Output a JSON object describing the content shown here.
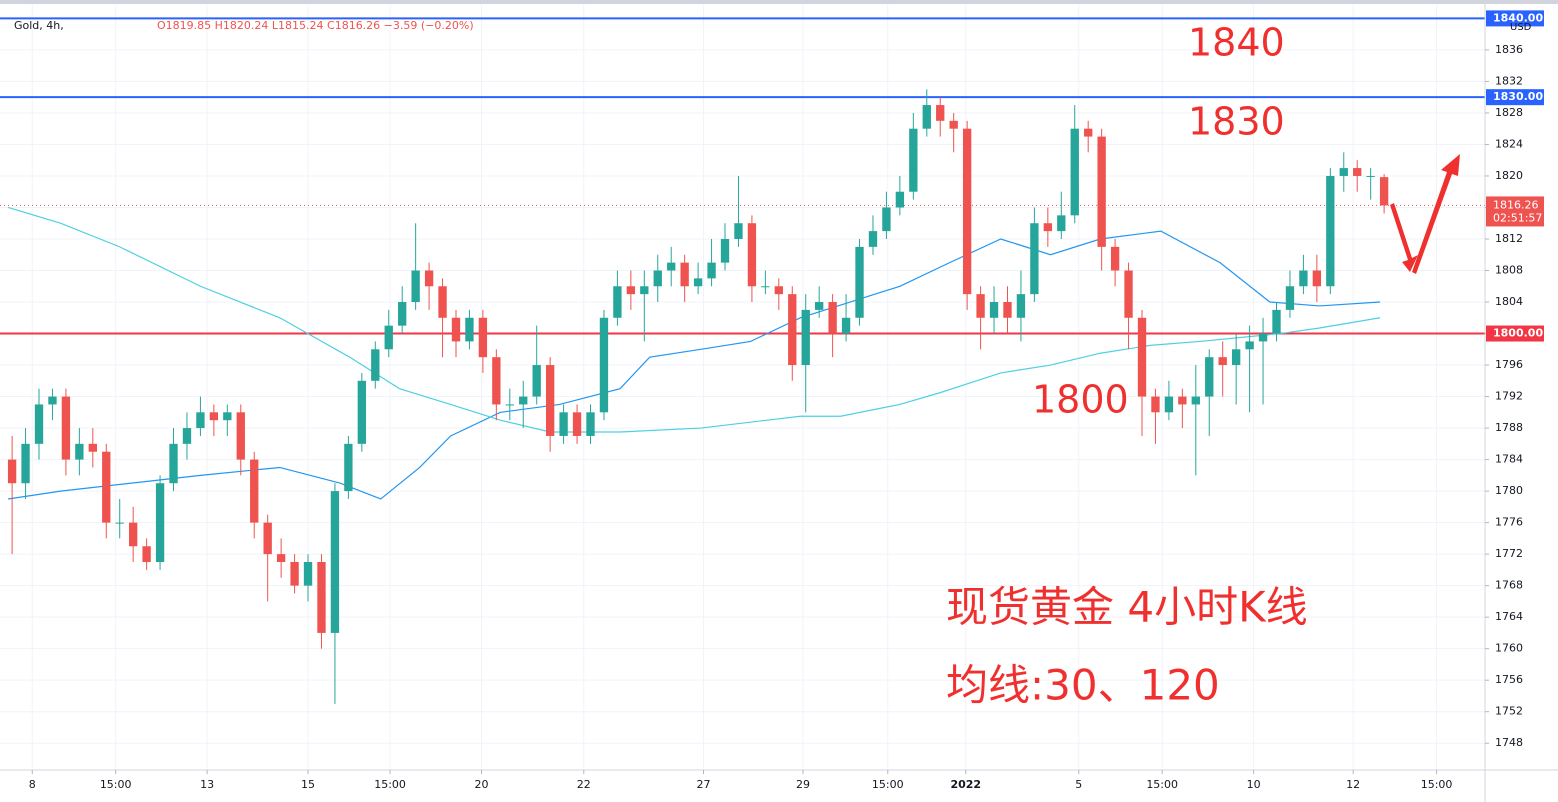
{
  "chart_data": {
    "type": "candlestick",
    "title": "Gold, 4h,",
    "ohlc_text": "O1819.85 H1820.24 L1815.24 C1816.26 −3.59 (−0.20%)",
    "currency": "USD",
    "up_color": "#26a69a",
    "down_color": "#ef5350",
    "grid": true,
    "ylim": [
      1744.6,
      1841.7
    ],
    "yticks": [
      1748,
      1752,
      1756,
      1760,
      1764,
      1768,
      1772,
      1776,
      1780,
      1784,
      1788,
      1792,
      1796,
      1800,
      1804,
      1808,
      1812,
      1816,
      1820,
      1824,
      1828,
      1832,
      1836
    ],
    "xlim": [
      -0.9,
      109.5
    ],
    "xticks": [
      {
        "value": 1.5,
        "label": "8"
      },
      {
        "value": 7.7,
        "label": "15:00"
      },
      {
        "value": 14.5,
        "label": "13"
      },
      {
        "value": 22.0,
        "label": "15"
      },
      {
        "value": 28.1,
        "label": "15:00"
      },
      {
        "value": 34.9,
        "label": "20"
      },
      {
        "value": 42.5,
        "label": "22"
      },
      {
        "value": 51.4,
        "label": "27"
      },
      {
        "value": 58.8,
        "label": "29"
      },
      {
        "value": 65.1,
        "label": "15:00"
      },
      {
        "value": 70.9,
        "label": "2022"
      },
      {
        "value": 79.3,
        "label": "5"
      },
      {
        "value": 85.5,
        "label": "15:00"
      },
      {
        "value": 92.3,
        "label": "10"
      },
      {
        "value": 99.7,
        "label": "12"
      },
      {
        "value": 105.9,
        "label": "15:00"
      }
    ],
    "open": [
      1784,
      1781,
      1786,
      1791,
      1792,
      1784,
      1786,
      1785,
      1776,
      1776,
      1773,
      1771,
      1781,
      1786,
      1788,
      1790,
      1789,
      1790,
      1784,
      1776,
      1772,
      1771,
      1768,
      1771,
      1762,
      1780,
      1786,
      1794,
      1798,
      1801,
      1804,
      1808,
      1806,
      1802,
      1799,
      1802,
      1797,
      1791,
      1791,
      1792,
      1796,
      1787,
      1790,
      1787,
      1790,
      1802,
      1806,
      1805,
      1806,
      1808,
      1809,
      1806,
      1807,
      1809,
      1812,
      1814,
      1806,
      1806,
      1805,
      1796,
      1803,
      1804,
      1800,
      1802,
      1811,
      1813,
      1816,
      1818,
      1826,
      1829,
      1827,
      1826,
      1805,
      1802,
      1804,
      1802,
      1805,
      1814,
      1813,
      1815,
      1826,
      1825,
      1811,
      1808,
      1802,
      1792,
      1790,
      1792,
      1791,
      1792,
      1797,
      1796,
      1798,
      1799,
      1800,
      1803,
      1806,
      1808,
      1806,
      1820,
      1821,
      1820,
      1819.85
    ],
    "high": [
      1787,
      1788,
      1793,
      1793,
      1793,
      1788,
      1788,
      1786,
      1779,
      1778,
      1774,
      1782,
      1788,
      1790,
      1792,
      1791,
      1791,
      1791,
      1785,
      1777,
      1774,
      1772,
      1772,
      1772,
      1781,
      1787,
      1795,
      1799,
      1803,
      1806,
      1814,
      1809,
      1807,
      1803,
      1803,
      1803,
      1798,
      1793,
      1794,
      1801,
      1797,
      1791,
      1791,
      1791,
      1803,
      1808,
      1808,
      1808,
      1810,
      1811,
      1810,
      1809,
      1812,
      1814,
      1820,
      1815,
      1808,
      1807,
      1806,
      1805,
      1806,
      1805,
      1805,
      1812,
      1815,
      1818,
      1820,
      1828,
      1831,
      1830,
      1828,
      1827,
      1806,
      1806,
      1806,
      1808,
      1816,
      1816,
      1818,
      1829,
      1827,
      1826,
      1812,
      1809,
      1803,
      1793,
      1794,
      1793,
      1796,
      1798,
      1799,
      1800,
      1801,
      1802,
      1804,
      1808,
      1810,
      1810,
      1821,
      1823,
      1822,
      1821,
      1820.24
    ],
    "low": [
      1772,
      1779,
      1784,
      1789,
      1782,
      1782,
      1783,
      1774,
      1774,
      1771,
      1770,
      1770,
      1780,
      1784,
      1787,
      1787,
      1787,
      1782,
      1774,
      1766,
      1769,
      1767,
      1766,
      1760,
      1753,
      1779,
      1785,
      1793,
      1797,
      1800,
      1803,
      1803,
      1797,
      1797,
      1798,
      1795,
      1789,
      1789,
      1788,
      1791,
      1785,
      1786,
      1786,
      1786,
      1789,
      1801,
      1803,
      1799,
      1804,
      1806,
      1804,
      1805,
      1806,
      1808,
      1811,
      1804,
      1805,
      1803,
      1794,
      1790,
      1802,
      1797,
      1799,
      1801,
      1810,
      1812,
      1815,
      1817,
      1825,
      1825,
      1823,
      1803,
      1798,
      1800,
      1800,
      1799,
      1804,
      1811,
      1812,
      1814,
      1823,
      1808,
      1806,
      1798,
      1787,
      1786,
      1789,
      1788,
      1782,
      1787,
      1792,
      1791,
      1790,
      1791,
      1799,
      1802,
      1805,
      1804,
      1805,
      1818,
      1818,
      1817,
      1815.24
    ],
    "close": [
      1781,
      1786,
      1791,
      1792,
      1784,
      1786,
      1785,
      1776,
      1776,
      1773,
      1771,
      1781,
      1786,
      1788,
      1790,
      1789,
      1790,
      1784,
      1776,
      1772,
      1771,
      1768,
      1771,
      1762,
      1780,
      1786,
      1794,
      1798,
      1801,
      1804,
      1808,
      1806,
      1802,
      1799,
      1802,
      1797,
      1791,
      1791,
      1792,
      1796,
      1787,
      1790,
      1787,
      1790,
      1802,
      1806,
      1805,
      1806,
      1808,
      1809,
      1806,
      1807,
      1809,
      1812,
      1814,
      1806,
      1806,
      1805,
      1796,
      1803,
      1804,
      1800,
      1802,
      1811,
      1813,
      1816,
      1818,
      1826,
      1829,
      1827,
      1826,
      1805,
      1802,
      1804,
      1802,
      1805,
      1814,
      1813,
      1815,
      1826,
      1825,
      1811,
      1808,
      1802,
      1792,
      1790,
      1792,
      1791,
      1792,
      1797,
      1796,
      1798,
      1799,
      1800,
      1803,
      1806,
      1808,
      1806,
      1820,
      1821,
      1820,
      1820,
      1816.26
    ],
    "lines": [
      {
        "color": "#2196f3",
        "x": [
          -0.3,
          3.6,
          8.8,
          14.0,
          19.9,
          24.4,
          27.4,
          30.3,
          32.6,
          36.3,
          40.7,
          45.2,
          47.4,
          51.2,
          54.9,
          58.6,
          62.3,
          66.0,
          69.7,
          73.5,
          77.2,
          80.9,
          85.4,
          89.8,
          93.5,
          97.2,
          101.7
        ],
        "values": [
          1779,
          1780,
          1781,
          1782,
          1783,
          1781,
          1779,
          1783,
          1787,
          1790,
          1791,
          1793,
          1797,
          1798,
          1799,
          1802,
          1804,
          1806,
          1809,
          1812,
          1810,
          1812,
          1813,
          1809,
          1804,
          1803.5,
          1804
        ]
      },
      {
        "color": "#4dd0e1",
        "x": [
          -0.3,
          3.6,
          8.0,
          14.0,
          19.9,
          25.1,
          28.8,
          32.6,
          36.3,
          40.0,
          45.2,
          51.2,
          58.6,
          61.6,
          66.0,
          69.0,
          73.5,
          77.2,
          80.9,
          84.6,
          88.3,
          94.3,
          97.2,
          101.7
        ],
        "values": [
          1816,
          1814,
          1811,
          1806,
          1802,
          1797,
          1793,
          1791,
          1789,
          1787.5,
          1787.5,
          1788,
          1789.5,
          1789.5,
          1791,
          1792.5,
          1795,
          1796,
          1797.5,
          1798.5,
          1799,
          1800,
          1800.7,
          1802
        ]
      }
    ],
    "hlines": [
      {
        "value": 1840,
        "label": "1840.00",
        "color": "#2962ff"
      },
      {
        "value": 1830,
        "label": "1830.00",
        "color": "#2962ff"
      },
      {
        "value": 1800,
        "label": "1800.00",
        "color": "#f23645"
      }
    ],
    "last_price": {
      "value": 1816.26,
      "countdown": "02:51:57",
      "color": "#ef5350"
    },
    "annotations": [
      "1840",
      "1830",
      "1800",
      "现货黄金 4小时K线",
      "均线:30、120"
    ]
  }
}
